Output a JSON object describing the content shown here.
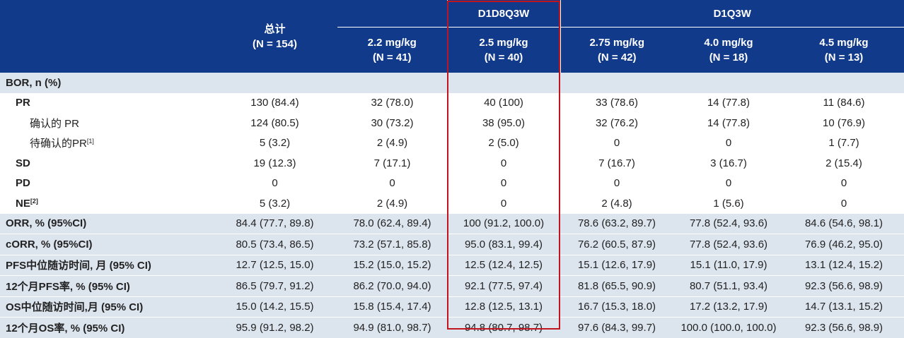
{
  "header": {
    "group_d1d8": "D1D8Q3W",
    "group_d1": "D1Q3W",
    "columns": [
      {
        "line1": "总计",
        "line2": "(N = 154)"
      },
      {
        "line1": "2.2 mg/kg",
        "line2": "(N = 41)"
      },
      {
        "line1": "2.5 mg/kg",
        "line2": "(N = 40)"
      },
      {
        "line1": "2.75 mg/kg",
        "line2": "(N = 42)"
      },
      {
        "line1": "4.0 mg/kg",
        "line2": "(N = 18)"
      },
      {
        "line1": "4.5 mg/kg",
        "line2": "(N = 13)"
      }
    ]
  },
  "rows": [
    {
      "label": "BOR, n (%)",
      "sup": "",
      "values": [
        "",
        "",
        "",
        "",
        "",
        ""
      ]
    },
    {
      "label": "PR",
      "sup": "",
      "values": [
        "130 (84.4)",
        "32 (78.0)",
        "40 (100)",
        "33 (78.6)",
        "14 (77.8)",
        "11 (84.6)"
      ]
    },
    {
      "label": "确认的 PR",
      "sup": "",
      "values": [
        "124 (80.5)",
        "30 (73.2)",
        "38 (95.0)",
        "32 (76.2)",
        "14 (77.8)",
        "10 (76.9)"
      ]
    },
    {
      "label": "待确认的PR",
      "sup": "[1]",
      "values": [
        "5 (3.2)",
        "2 (4.9)",
        "2 (5.0)",
        "0",
        "0",
        "1 (7.7)"
      ]
    },
    {
      "label": "SD",
      "sup": "",
      "values": [
        "19 (12.3)",
        "7 (17.1)",
        "0",
        "7 (16.7)",
        "3 (16.7)",
        "2 (15.4)"
      ]
    },
    {
      "label": "PD",
      "sup": "",
      "values": [
        "0",
        "0",
        "0",
        "0",
        "0",
        "0"
      ]
    },
    {
      "label": "NE",
      "sup": "[2]",
      "values": [
        "5 (3.2)",
        "2 (4.9)",
        "0",
        "2 (4.8)",
        "1 (5.6)",
        "0"
      ]
    },
    {
      "label": "ORR, % (95%CI)",
      "sup": "",
      "values": [
        "84.4 (77.7, 89.8)",
        "78.0 (62.4, 89.4)",
        "100 (91.2, 100.0)",
        "78.6 (63.2, 89.7)",
        "77.8 (52.4, 93.6)",
        "84.6 (54.6, 98.1)"
      ]
    },
    {
      "label": "cORR, % (95%CI)",
      "sup": "",
      "values": [
        "80.5 (73.4, 86.5)",
        "73.2 (57.1, 85.8)",
        "95.0 (83.1, 99.4)",
        "76.2 (60.5, 87.9)",
        "77.8 (52.4, 93.6)",
        "76.9 (46.2, 95.0)"
      ]
    },
    {
      "label": "PFS中位随访时间, 月 (95% CI)",
      "sup": "",
      "values": [
        "12.7 (12.5, 15.0)",
        "15.2 (15.0, 15.2)",
        "12.5 (12.4, 12.5)",
        "15.1 (12.6, 17.9)",
        "15.1 (11.0, 17.9)",
        "13.1 (12.4, 15.2)"
      ]
    },
    {
      "label": "12个月PFS率, % (95% CI)",
      "sup": "",
      "values": [
        "86.5 (79.7, 91.2)",
        "86.2 (70.0, 94.0)",
        "92.1 (77.5, 97.4)",
        "81.8 (65.5, 90.9)",
        "80.7 (51.1, 93.4)",
        "92.3 (56.6, 98.9)"
      ]
    },
    {
      "label": "OS中位随访时间,月 (95% CI)",
      "sup": "",
      "values": [
        "15.0 (14.2, 15.5)",
        "15.8 (15.4, 17.4)",
        "12.8 (12.5, 13.1)",
        "16.7 (15.3, 18.0)",
        "17.2 (13.2, 17.9)",
        "14.7 (13.1, 15.2)"
      ]
    },
    {
      "label": "12个月OS率, % (95% CI)",
      "sup": "",
      "values": [
        "95.9 (91.2, 98.2)",
        "94.9 (81.0, 98.7)",
        "94.8 (80.7, 98.7)",
        "97.6 (84.3, 99.7)",
        "100.0 (100.0, 100.0)",
        "92.3 (56.6, 98.9)"
      ]
    }
  ],
  "colors": {
    "header_bg": "#123a8a",
    "shade_bg": "#dce4ee",
    "highlight_border": "#c0141f"
  }
}
